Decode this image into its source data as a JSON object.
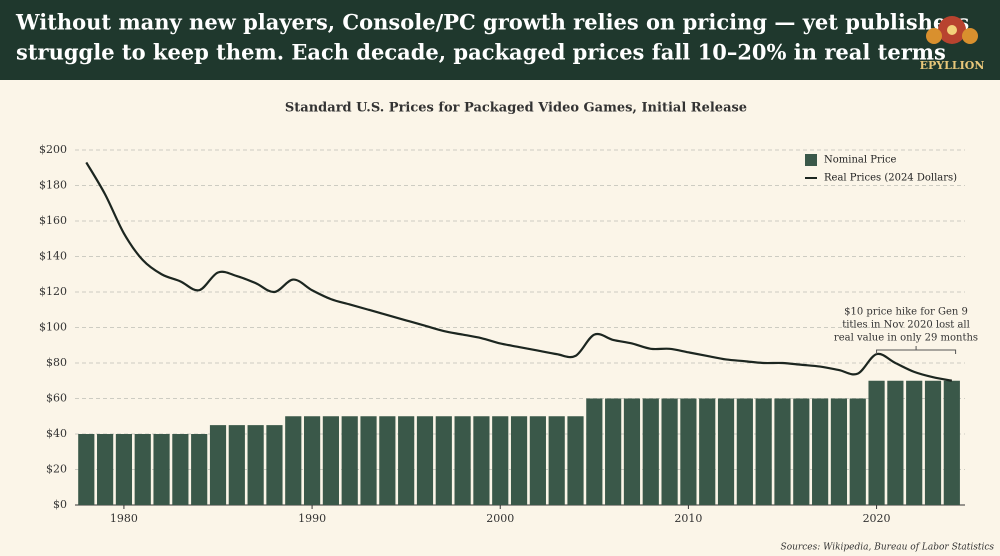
{
  "chart_data": {
    "type": "bar-line",
    "headline": [
      "Without many new players, Console/PC growth relies on pricing — yet publishers",
      "struggle to keep them. Each decade, packaged prices fall 10–20% in real terms"
    ],
    "brand": "EPYLLION",
    "title": "Standard U.S. Prices for Packaged Video Games, Initial Release",
    "x": [
      1978,
      1979,
      1980,
      1981,
      1982,
      1983,
      1984,
      1985,
      1986,
      1987,
      1988,
      1989,
      1990,
      1991,
      1992,
      1993,
      1994,
      1995,
      1996,
      1997,
      1998,
      1999,
      2000,
      2001,
      2002,
      2003,
      2004,
      2005,
      2006,
      2007,
      2008,
      2009,
      2010,
      2011,
      2012,
      2013,
      2014,
      2015,
      2016,
      2017,
      2018,
      2019,
      2020,
      2021,
      2022,
      2023,
      2024
    ],
    "series": [
      {
        "name": "Nominal Price",
        "type": "bar",
        "color": "#3a5849",
        "values": [
          40,
          40,
          40,
          40,
          40,
          40,
          40,
          45,
          45,
          45,
          45,
          50,
          50,
          50,
          50,
          50,
          50,
          50,
          50,
          50,
          50,
          50,
          50,
          50,
          50,
          50,
          50,
          60,
          60,
          60,
          60,
          60,
          60,
          60,
          60,
          60,
          60,
          60,
          60,
          60,
          60,
          60,
          70,
          70,
          70,
          70,
          70
        ]
      },
      {
        "name": "Real Prices (2024 Dollars)",
        "type": "line",
        "color": "#1c2620",
        "values": [
          193,
          175,
          153,
          138,
          130,
          126,
          121,
          131,
          129,
          125,
          120,
          127,
          121,
          116,
          113,
          110,
          107,
          104,
          101,
          98,
          96,
          94,
          91,
          89,
          87,
          85,
          84,
          96,
          93,
          91,
          88,
          88,
          86,
          84,
          82,
          81,
          80,
          80,
          79,
          78,
          76,
          74,
          85,
          80,
          75,
          72,
          70
        ]
      }
    ],
    "xlim": [
      1977.4,
      2024.7
    ],
    "xticks": [
      1980,
      1990,
      2000,
      2010,
      2020
    ],
    "ylim": [
      0,
      200
    ],
    "yticks": [
      {
        "value": 0,
        "label": "$0"
      },
      {
        "value": 20,
        "label": "$20"
      },
      {
        "value": 40,
        "label": "$40"
      },
      {
        "value": 60,
        "label": "$60"
      },
      {
        "value": 80,
        "label": "$80"
      },
      {
        "value": 100,
        "label": "$100"
      },
      {
        "value": 120,
        "label": "$120"
      },
      {
        "value": 140,
        "label": "$140"
      },
      {
        "value": 160,
        "label": "$160"
      },
      {
        "value": 180,
        "label": "$180"
      },
      {
        "value": 200,
        "label": "$200"
      }
    ],
    "grid": true,
    "legend": "upper right",
    "annotation": [
      "$10 price hike for Gen 9",
      "titles in Nov 2020 lost all",
      "real value in only 29 months"
    ],
    "source": "Sources: Wikipedia, Bureau of Labor Statistics"
  }
}
